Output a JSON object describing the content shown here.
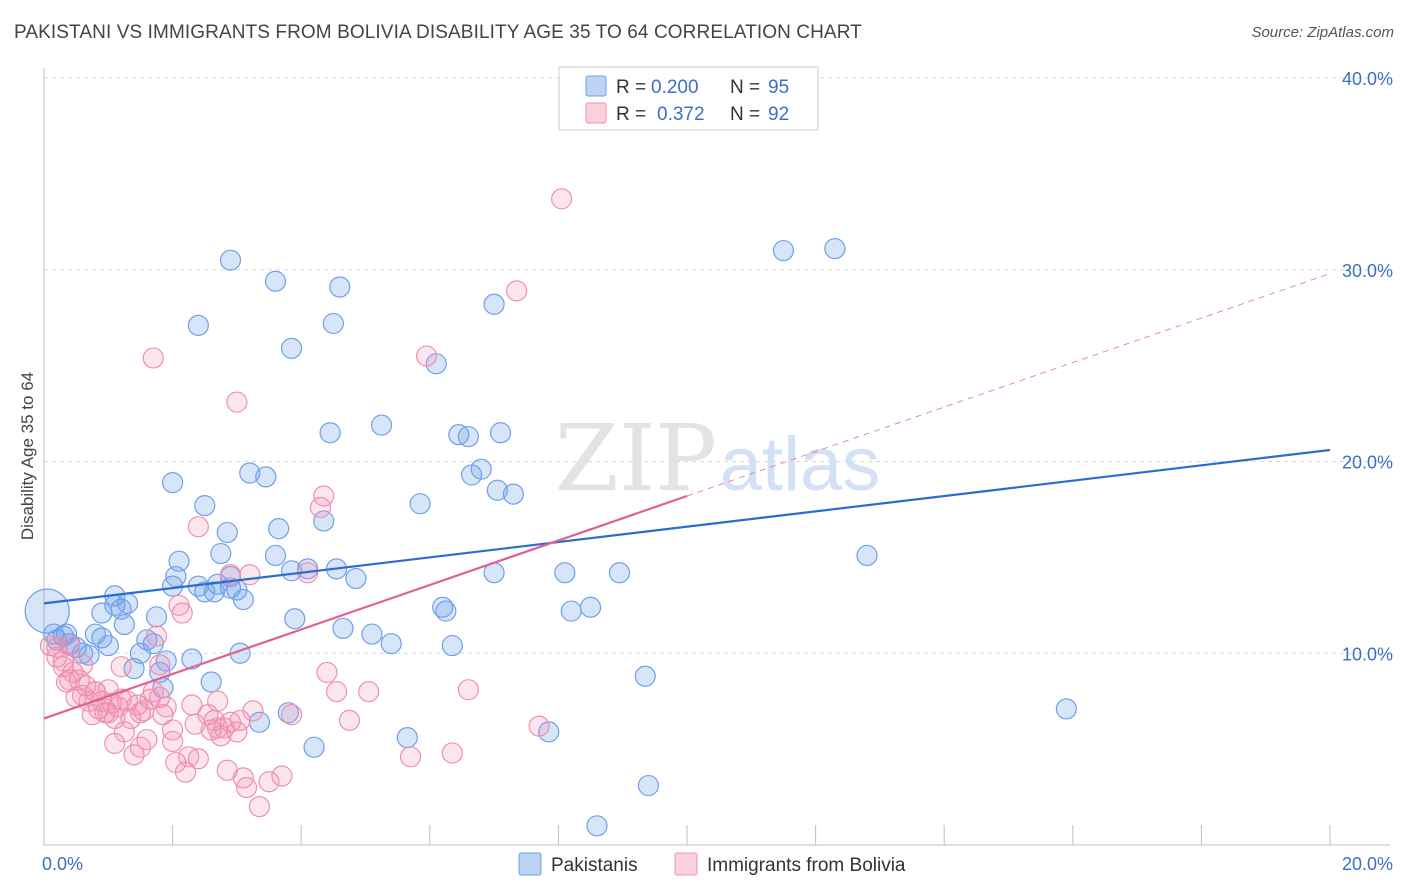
{
  "title": "PAKISTANI VS IMMIGRANTS FROM BOLIVIA DISABILITY AGE 35 TO 64 CORRELATION CHART",
  "source": "Source: ZipAtlas.com",
  "watermark": {
    "zip": "ZIP",
    "atlas": "atlas"
  },
  "colors": {
    "pakistanis": "#6fa0e8",
    "bolivia": "#f08fb0",
    "pakistanis_line": "#2a6dd0",
    "bolivia_line": "#e0608f",
    "tick_text": "#3b6fc4",
    "grid": "#d9d9d9"
  },
  "stats_legend": {
    "rows": [
      {
        "r_label": "R =",
        "r_value": "0.200",
        "n_label": "N =",
        "n_value": "95"
      },
      {
        "r_label": "R =",
        "r_value": "0.372",
        "n_label": "N =",
        "n_value": "92"
      }
    ]
  },
  "chart_data": {
    "type": "scatter",
    "title": "PAKISTANI VS IMMIGRANTS FROM BOLIVIA DISABILITY AGE 35 TO 64 CORRELATION CHART",
    "xlabel": "",
    "ylabel": "Disability Age 35 to 64",
    "xlim": [
      0,
      20
    ],
    "ylim": [
      0,
      40
    ],
    "x_tick_labels": [
      {
        "value": 0,
        "label": "0.0%"
      },
      {
        "value": 20,
        "label": "20.0%"
      }
    ],
    "y_tick_labels": [
      {
        "value": 10,
        "label": "10.0%"
      },
      {
        "value": 20,
        "label": "20.0%"
      },
      {
        "value": 30,
        "label": "30.0%"
      },
      {
        "value": 40,
        "label": "40.0%"
      }
    ],
    "grid": true,
    "legend_position": "bottom",
    "series": [
      {
        "name": "Pakistanis",
        "r": 0.2,
        "n": 95,
        "trend": {
          "x": [
            0,
            20
          ],
          "y": [
            12.6,
            20.6
          ],
          "dashed_from": null
        },
        "points": [
          [
            0.05,
            12.2,
            22
          ],
          [
            0.15,
            11.0,
            10
          ],
          [
            0.2,
            10.7,
            10
          ],
          [
            0.3,
            10.9,
            10
          ],
          [
            0.35,
            11.0,
            10
          ],
          [
            0.4,
            10.5,
            10
          ],
          [
            0.5,
            10.3,
            10
          ],
          [
            0.6,
            10.0,
            10
          ],
          [
            0.7,
            9.9,
            10
          ],
          [
            0.8,
            11.0,
            10
          ],
          [
            0.9,
            10.8,
            10
          ],
          [
            0.9,
            12.1,
            10
          ],
          [
            1.1,
            13.0,
            10
          ],
          [
            1.1,
            12.5,
            10
          ],
          [
            1.2,
            12.3,
            10
          ],
          [
            1.25,
            11.5,
            10
          ],
          [
            1.3,
            12.6,
            10
          ],
          [
            1.4,
            9.2,
            10
          ],
          [
            1.5,
            10.0,
            10
          ],
          [
            1.6,
            10.7,
            10
          ],
          [
            1.7,
            10.5,
            10
          ],
          [
            1.75,
            11.9,
            10
          ],
          [
            1.8,
            9.0,
            10
          ],
          [
            1.85,
            8.2,
            10
          ],
          [
            1.9,
            9.6,
            10
          ],
          [
            2.0,
            13.5,
            10
          ],
          [
            2.05,
            14.0,
            10
          ],
          [
            2.1,
            14.8,
            10
          ],
          [
            2.0,
            18.9,
            10
          ],
          [
            2.3,
            9.7,
            10
          ],
          [
            2.4,
            13.5,
            10
          ],
          [
            2.5,
            13.2,
            10
          ],
          [
            2.5,
            17.7,
            10
          ],
          [
            2.6,
            8.5,
            10
          ],
          [
            2.65,
            13.2,
            10
          ],
          [
            2.7,
            13.6,
            10
          ],
          [
            2.75,
            15.2,
            10
          ],
          [
            2.85,
            16.3,
            10
          ],
          [
            2.9,
            13.4,
            10
          ],
          [
            2.9,
            14.0,
            10
          ],
          [
            3.0,
            13.3,
            10
          ],
          [
            3.05,
            10.0,
            10
          ],
          [
            3.1,
            12.8,
            10
          ],
          [
            3.2,
            19.4,
            10
          ],
          [
            3.35,
            6.4,
            10
          ],
          [
            3.45,
            19.2,
            10
          ],
          [
            3.6,
            15.1,
            10
          ],
          [
            3.65,
            16.5,
            10
          ],
          [
            3.8,
            6.9,
            10
          ],
          [
            3.85,
            14.3,
            10
          ],
          [
            3.9,
            11.8,
            10
          ],
          [
            4.1,
            14.4,
            10
          ],
          [
            4.2,
            5.1,
            10
          ],
          [
            4.35,
            16.9,
            10
          ],
          [
            4.45,
            21.5,
            10
          ],
          [
            4.55,
            14.4,
            10
          ],
          [
            4.65,
            11.3,
            10
          ],
          [
            4.85,
            13.9,
            10
          ],
          [
            5.1,
            11.0,
            10
          ],
          [
            5.25,
            21.9,
            10
          ],
          [
            5.4,
            10.5,
            10
          ],
          [
            5.65,
            5.6,
            10
          ],
          [
            5.85,
            17.8,
            10
          ],
          [
            6.1,
            25.1,
            10
          ],
          [
            6.2,
            12.4,
            10
          ],
          [
            6.25,
            12.2,
            10
          ],
          [
            6.35,
            10.4,
            10
          ],
          [
            6.45,
            21.4,
            10
          ],
          [
            6.65,
            19.3,
            10
          ],
          [
            6.8,
            19.6,
            10
          ],
          [
            7.0,
            14.2,
            10
          ],
          [
            7.05,
            18.5,
            10
          ],
          [
            7.1,
            21.5,
            10
          ],
          [
            7.3,
            18.3,
            10
          ],
          [
            7.85,
            5.9,
            10
          ],
          [
            8.1,
            14.2,
            10
          ],
          [
            8.2,
            12.2,
            10
          ],
          [
            8.5,
            12.4,
            10
          ],
          [
            8.6,
            1.0,
            10
          ],
          [
            8.95,
            14.2,
            10
          ],
          [
            9.35,
            8.8,
            10
          ],
          [
            9.4,
            3.1,
            10
          ],
          [
            2.4,
            27.1,
            10
          ],
          [
            2.9,
            30.5,
            10
          ],
          [
            3.6,
            29.4,
            10
          ],
          [
            3.85,
            25.9,
            10
          ],
          [
            4.5,
            27.2,
            10
          ],
          [
            4.6,
            29.1,
            10
          ],
          [
            6.6,
            21.3,
            10
          ],
          [
            7.0,
            28.2,
            10
          ],
          [
            11.5,
            31.0,
            10
          ],
          [
            12.3,
            31.1,
            10
          ],
          [
            12.8,
            15.1,
            10
          ],
          [
            15.9,
            7.1,
            10
          ],
          [
            1.0,
            10.4,
            10
          ]
        ]
      },
      {
        "name": "Immigrants from Bolivia",
        "r": 0.372,
        "n": 92,
        "trend": {
          "x": [
            0,
            20
          ],
          "y": [
            6.6,
            29.8
          ],
          "dashed_from": 10
        },
        "points": [
          [
            0.1,
            10.4,
            10
          ],
          [
            0.2,
            9.8,
            10
          ],
          [
            0.3,
            9.3,
            10
          ],
          [
            0.35,
            8.5,
            10
          ],
          [
            0.4,
            10.4,
            10
          ],
          [
            0.45,
            9.0,
            10
          ],
          [
            0.5,
            7.7,
            10
          ],
          [
            0.55,
            8.6,
            10
          ],
          [
            0.6,
            9.4,
            10
          ],
          [
            0.65,
            8.3,
            10
          ],
          [
            0.7,
            7.5,
            10
          ],
          [
            0.75,
            6.8,
            10
          ],
          [
            0.8,
            8.0,
            10
          ],
          [
            0.85,
            7.1,
            10
          ],
          [
            0.9,
            7.5,
            10
          ],
          [
            0.95,
            6.9,
            10
          ],
          [
            1.0,
            8.1,
            10
          ],
          [
            1.05,
            7.4,
            10
          ],
          [
            1.1,
            6.6,
            10
          ],
          [
            1.1,
            5.3,
            10
          ],
          [
            1.15,
            7.2,
            10
          ],
          [
            1.2,
            7.6,
            10
          ],
          [
            1.25,
            5.9,
            10
          ],
          [
            1.3,
            7.5,
            10
          ],
          [
            1.35,
            6.6,
            10
          ],
          [
            1.4,
            4.7,
            10
          ],
          [
            1.45,
            7.3,
            10
          ],
          [
            1.5,
            6.9,
            10
          ],
          [
            1.55,
            7.0,
            10
          ],
          [
            1.6,
            5.5,
            10
          ],
          [
            1.65,
            7.6,
            10
          ],
          [
            1.7,
            8.0,
            10
          ],
          [
            1.75,
            10.9,
            10
          ],
          [
            1.8,
            9.4,
            10
          ],
          [
            1.85,
            6.8,
            10
          ],
          [
            1.9,
            7.2,
            10
          ],
          [
            2.0,
            6.0,
            10
          ],
          [
            2.05,
            4.3,
            10
          ],
          [
            2.1,
            12.5,
            10
          ],
          [
            2.15,
            12.1,
            10
          ],
          [
            2.2,
            3.8,
            10
          ],
          [
            2.25,
            4.6,
            10
          ],
          [
            2.3,
            7.3,
            10
          ],
          [
            2.35,
            6.3,
            10
          ],
          [
            2.4,
            16.6,
            10
          ],
          [
            2.55,
            6.8,
            10
          ],
          [
            2.6,
            6.0,
            10
          ],
          [
            2.65,
            6.5,
            10
          ],
          [
            2.7,
            6.1,
            10
          ],
          [
            2.75,
            5.7,
            10
          ],
          [
            2.8,
            6.1,
            10
          ],
          [
            2.85,
            3.9,
            10
          ],
          [
            2.9,
            6.4,
            10
          ],
          [
            3.0,
            5.9,
            10
          ],
          [
            3.05,
            6.5,
            10
          ],
          [
            3.1,
            3.5,
            10
          ],
          [
            3.15,
            3.0,
            10
          ],
          [
            3.25,
            7.0,
            10
          ],
          [
            3.35,
            2.0,
            10
          ],
          [
            3.5,
            3.3,
            10
          ],
          [
            3.7,
            3.6,
            10
          ],
          [
            3.85,
            6.8,
            10
          ],
          [
            4.1,
            14.2,
            10
          ],
          [
            4.3,
            17.6,
            10
          ],
          [
            4.35,
            18.2,
            10
          ],
          [
            4.4,
            9.0,
            10
          ],
          [
            4.55,
            8.0,
            10
          ],
          [
            4.75,
            6.5,
            10
          ],
          [
            5.05,
            8.0,
            10
          ],
          [
            5.7,
            4.6,
            10
          ],
          [
            5.95,
            25.5,
            10
          ],
          [
            6.35,
            4.8,
            10
          ],
          [
            6.6,
            8.1,
            10
          ],
          [
            7.35,
            28.9,
            10
          ],
          [
            7.7,
            6.2,
            10
          ],
          [
            8.05,
            33.7,
            10
          ],
          [
            1.7,
            25.4,
            10
          ],
          [
            3.0,
            23.1,
            10
          ],
          [
            2.9,
            14.1,
            10
          ],
          [
            3.2,
            14.1,
            10
          ],
          [
            0.2,
            10.3,
            10
          ],
          [
            0.3,
            9.6,
            10
          ],
          [
            0.4,
            8.6,
            10
          ],
          [
            0.6,
            7.8,
            10
          ],
          [
            0.8,
            8.0,
            10
          ],
          [
            1.0,
            6.9,
            10
          ],
          [
            1.2,
            9.3,
            10
          ],
          [
            1.5,
            5.1,
            10
          ],
          [
            1.8,
            7.7,
            10
          ],
          [
            2.0,
            5.4,
            10
          ],
          [
            2.4,
            4.5,
            10
          ],
          [
            2.7,
            7.5,
            10
          ]
        ]
      }
    ]
  },
  "legend_bottom": {
    "items": [
      {
        "label": "Pakistanis"
      },
      {
        "label": "Immigrants from Bolivia"
      }
    ]
  }
}
